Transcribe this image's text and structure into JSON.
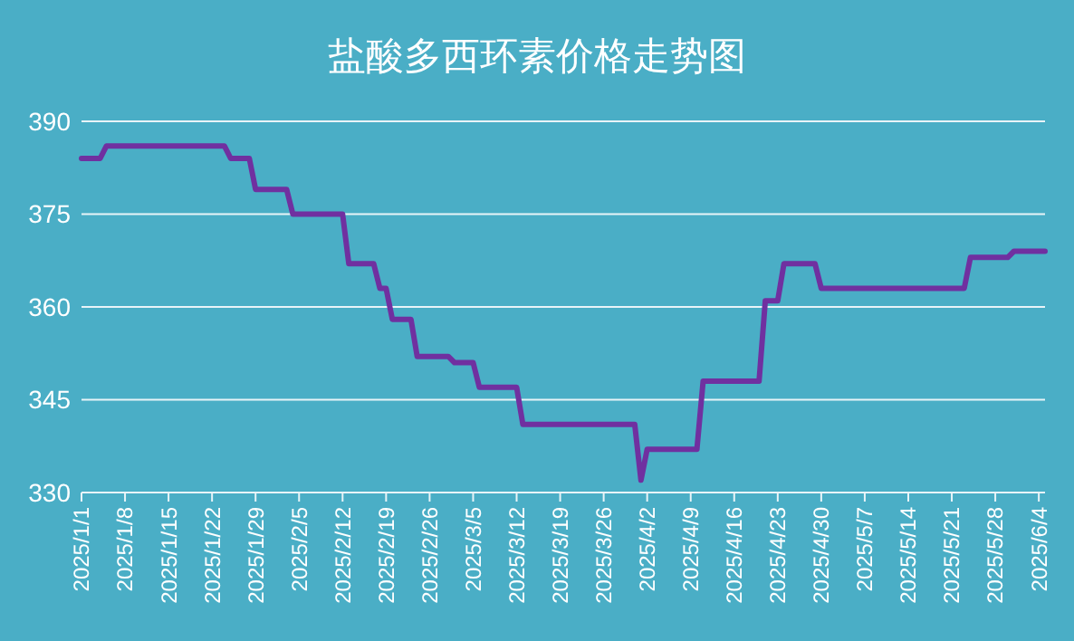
{
  "chart_data": {
    "type": "line",
    "title": "盐酸多西环素价格走势图",
    "x": [
      "2025-01-01",
      "2025-01-04",
      "2025-01-05",
      "2025-01-24",
      "2025-01-25",
      "2025-01-28",
      "2025-01-29",
      "2025-02-03",
      "2025-02-04",
      "2025-02-12",
      "2025-02-13",
      "2025-02-17",
      "2025-02-18",
      "2025-02-19",
      "2025-02-20",
      "2025-02-23",
      "2025-02-24",
      "2025-03-01",
      "2025-03-02",
      "2025-03-05",
      "2025-03-06",
      "2025-03-12",
      "2025-03-13",
      "2025-03-31",
      "2025-04-01",
      "2025-04-02",
      "2025-04-10",
      "2025-04-11",
      "2025-04-20",
      "2025-04-21",
      "2025-04-23",
      "2025-04-24",
      "2025-04-29",
      "2025-04-30",
      "2025-05-23",
      "2025-05-24",
      "2025-05-30",
      "2025-05-31",
      "2025-06-05"
    ],
    "series": [
      {
        "color": "#7030a0",
        "values": [
          384,
          384,
          386,
          386,
          384,
          384,
          379,
          379,
          375,
          375,
          367,
          367,
          363,
          363,
          358,
          358,
          352,
          352,
          351,
          351,
          347,
          347,
          341,
          341,
          332,
          337,
          337,
          348,
          348,
          361,
          361,
          367,
          367,
          363,
          363,
          368,
          368,
          369,
          369
        ]
      }
    ],
    "xlim": [
      "2025-01-01",
      "2025-06-05"
    ],
    "xticks": [
      {
        "value": "2025-01-01",
        "label": "2025/1/1"
      },
      {
        "value": "2025-01-08",
        "label": "2025/1/8"
      },
      {
        "value": "2025-01-15",
        "label": "2025/1/15"
      },
      {
        "value": "2025-01-22",
        "label": "2025/1/22"
      },
      {
        "value": "2025-01-29",
        "label": "2025/1/29"
      },
      {
        "value": "2025-02-05",
        "label": "2025/2/5"
      },
      {
        "value": "2025-02-12",
        "label": "2025/2/12"
      },
      {
        "value": "2025-02-19",
        "label": "2025/2/19"
      },
      {
        "value": "2025-02-26",
        "label": "2025/2/26"
      },
      {
        "value": "2025-03-05",
        "label": "2025/3/5"
      },
      {
        "value": "2025-03-12",
        "label": "2025/3/12"
      },
      {
        "value": "2025-03-19",
        "label": "2025/3/19"
      },
      {
        "value": "2025-03-26",
        "label": "2025/3/26"
      },
      {
        "value": "2025-04-02",
        "label": "2025/4/2"
      },
      {
        "value": "2025-04-09",
        "label": "2025/4/9"
      },
      {
        "value": "2025-04-16",
        "label": "2025/4/16"
      },
      {
        "value": "2025-04-23",
        "label": "2025/4/23"
      },
      {
        "value": "2025-04-30",
        "label": "2025/4/30"
      },
      {
        "value": "2025-05-07",
        "label": "2025/5/7"
      },
      {
        "value": "2025-05-14",
        "label": "2025/5/14"
      },
      {
        "value": "2025-05-21",
        "label": "2025/5/21"
      },
      {
        "value": "2025-05-28",
        "label": "2025/5/28"
      },
      {
        "value": "2025-06-04",
        "label": "2025/6/4"
      }
    ],
    "ylim": [
      330,
      390
    ],
    "yticks": [
      330,
      345,
      360,
      375,
      390
    ],
    "grid": "y",
    "marker": "none",
    "line_style": "solid"
  }
}
